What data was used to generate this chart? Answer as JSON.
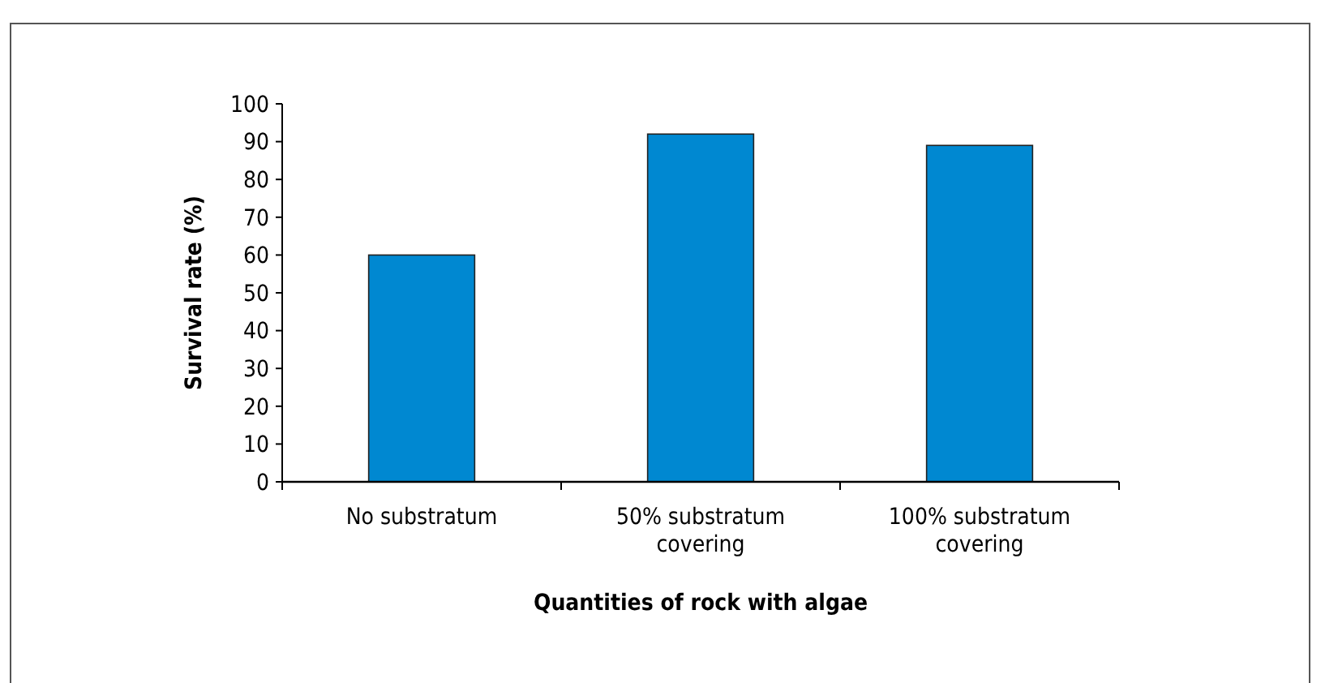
{
  "chart_data": {
    "type": "bar",
    "xlabel": "Quantities of rock with algae",
    "ylabel": "Survival rate (%)",
    "categories": [
      "No substratum",
      "50% substratum covering",
      "100% substratum covering"
    ],
    "values": [
      60,
      92,
      89
    ],
    "color": "#0088d1",
    "ylim": [
      0,
      100
    ],
    "yticks": [
      0,
      10,
      20,
      30,
      40,
      50,
      60,
      70,
      80,
      90,
      100
    ],
    "grid": false
  }
}
